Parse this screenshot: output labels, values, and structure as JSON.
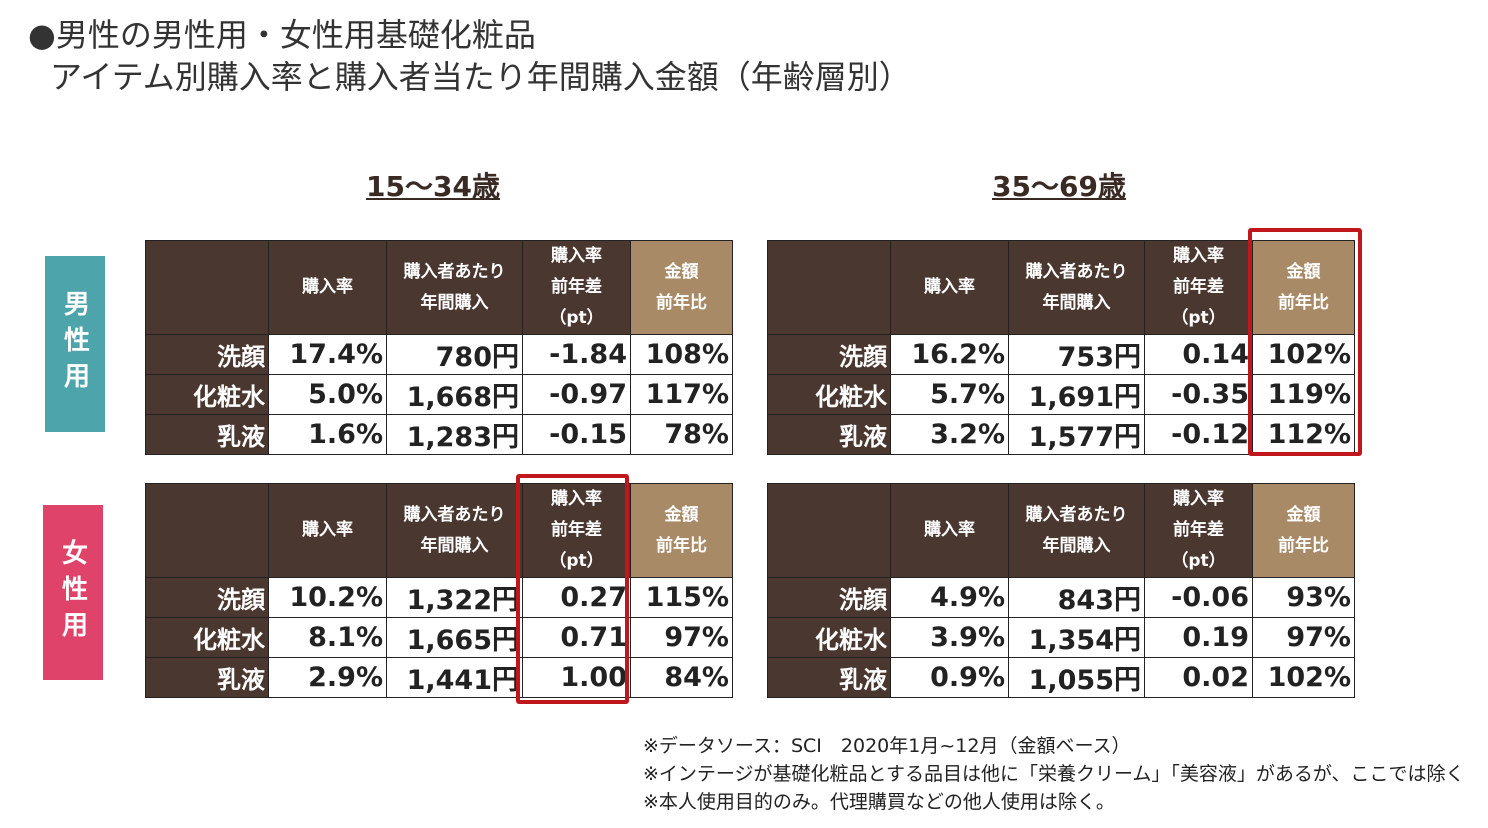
{
  "title": [
    "●男性の男性用・女性用基礎化粧品",
    "アイテム別購入率と購入者当たり年間購入金額（年齢層別）"
  ],
  "age_groups": [
    "15～34歳",
    "35～69歳"
  ],
  "sides": [
    "男性用",
    "女性用"
  ],
  "headers": [
    [
      "購入率"
    ],
    [
      "購入者あたり",
      "年間購入"
    ],
    [
      "購入率",
      "前年差",
      "（pt）"
    ],
    [
      "金額",
      "前年比"
    ]
  ],
  "tables": [
    {
      "rows": [
        [
          "洗顔",
          "17.4%",
          "780円",
          "-1.84",
          "108%"
        ],
        [
          "化粧水",
          "5.0%",
          "1,668円",
          "-0.97",
          "117%"
        ],
        [
          "乳液",
          "1.6%",
          "1,283円",
          "-0.15",
          "78%"
        ]
      ]
    },
    {
      "rows": [
        [
          "洗顔",
          "16.2%",
          "753円",
          "0.14",
          "102%"
        ],
        [
          "化粧水",
          "5.7%",
          "1,691円",
          "-0.35",
          "119%"
        ],
        [
          "乳液",
          "3.2%",
          "1,577円",
          "-0.12",
          "112%"
        ]
      ]
    },
    {
      "rows": [
        [
          "洗顔",
          "10.2%",
          "1,322円",
          "0.27",
          "115%"
        ],
        [
          "化粧水",
          "8.1%",
          "1,665円",
          "0.71",
          "97%"
        ],
        [
          "乳液",
          "2.9%",
          "1,441円",
          "1.00",
          "84%"
        ]
      ]
    },
    {
      "rows": [
        [
          "洗顔",
          "4.9%",
          "843円",
          "-0.06",
          "93%"
        ],
        [
          "化粧水",
          "3.9%",
          "1,354円",
          "0.19",
          "97%"
        ],
        [
          "乳液",
          "0.9%",
          "1,055円",
          "0.02",
          "102%"
        ]
      ]
    }
  ],
  "notes": [
    "※データソース：SCI　2020年1月~12月（金額ベース）",
    "※インテージが基礎化粧品とする品目は他に「栄養クリーム」「美容液」があるが、ここでは除く",
    "※本人使用目的のみ。代理購買などの他人使用は除く。"
  ]
}
